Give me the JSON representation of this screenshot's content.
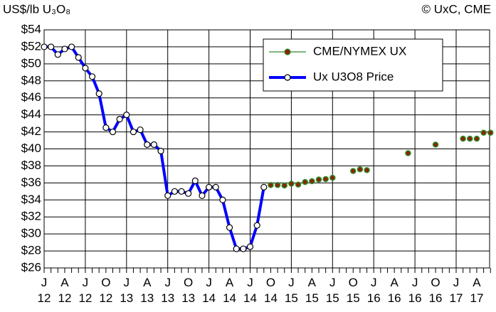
{
  "chart_data": {
    "type": "line",
    "y_unit_label": "US$/lb U₃O₈",
    "source": "© UxC, CME",
    "categories": [
      "J 12",
      null,
      null,
      "A 12",
      null,
      null,
      "J 12",
      null,
      null,
      "O 12",
      null,
      null,
      "J 13",
      null,
      null,
      "A 13",
      null,
      null,
      "J 13",
      null,
      null,
      "O 13",
      null,
      null,
      "J 14",
      null,
      null,
      "A 14",
      null,
      null,
      "J 14",
      null,
      null,
      "O 14",
      null,
      null,
      "J 15",
      null,
      null,
      "A 15",
      null,
      null,
      "J 15",
      null,
      null,
      "O 15",
      null,
      null,
      "J 16",
      null,
      null,
      "A 16",
      null,
      null,
      "J 16",
      null,
      null,
      "O 16",
      null,
      null,
      "J 17",
      null,
      null,
      "A 17",
      null,
      null
    ],
    "series": [
      {
        "name": "CME/NYMEX UX",
        "color": "#2e8b2e",
        "marker_fill": "#8b2500",
        "show_line": false,
        "values": [
          null,
          null,
          null,
          null,
          null,
          null,
          null,
          null,
          null,
          null,
          null,
          null,
          null,
          null,
          null,
          null,
          null,
          null,
          null,
          null,
          null,
          null,
          null,
          null,
          null,
          null,
          null,
          null,
          null,
          null,
          null,
          null,
          null,
          35.75,
          35.75,
          35.7,
          35.9,
          35.8,
          36.1,
          36.2,
          36.4,
          36.45,
          36.6,
          null,
          null,
          37.4,
          37.6,
          37.5,
          null,
          null,
          null,
          null,
          null,
          39.5,
          null,
          null,
          null,
          40.5,
          null,
          null,
          null,
          41.2,
          41.2,
          41.2,
          41.9,
          41.9
        ]
      },
      {
        "name": "Ux U3O8 Price",
        "color": "#0000ff",
        "marker_fill": "#ffffff",
        "show_line": true,
        "values": [
          52,
          52,
          51.1,
          51.75,
          52,
          50.75,
          49.5,
          48.5,
          46.5,
          42.5,
          42,
          43.5,
          44,
          42,
          42.25,
          40.5,
          40.5,
          39.75,
          34.5,
          35,
          35,
          34.75,
          36.25,
          34.5,
          35.5,
          35.5,
          34,
          30.75,
          28.25,
          28.25,
          28.5,
          31,
          35.5,
          null,
          null,
          null,
          null,
          null,
          null,
          null,
          null,
          null,
          null,
          null,
          null,
          null,
          null,
          null,
          null,
          null,
          null,
          null,
          null,
          null,
          null,
          null,
          null,
          null,
          null,
          null,
          null,
          null,
          null,
          null,
          null,
          null
        ]
      }
    ],
    "ylim": [
      26,
      54
    ],
    "yticks": [
      {
        "value": 26,
        "label": "$26"
      },
      {
        "value": 28,
        "label": "$28"
      },
      {
        "value": 30,
        "label": "$30"
      },
      {
        "value": 32,
        "label": "$32"
      },
      {
        "value": 34,
        "label": "$34"
      },
      {
        "value": 36,
        "label": "$36"
      },
      {
        "value": 38,
        "label": "$38"
      },
      {
        "value": 40,
        "label": "$40"
      },
      {
        "value": 42,
        "label": "$42"
      },
      {
        "value": 44,
        "label": "$44"
      },
      {
        "value": 46,
        "label": "$46"
      },
      {
        "value": 48,
        "label": "$48"
      },
      {
        "value": 50,
        "label": "$50"
      },
      {
        "value": 52,
        "label": "$52"
      },
      {
        "value": 54,
        "label": "$54"
      }
    ],
    "grid": true,
    "legend": "top-right"
  }
}
